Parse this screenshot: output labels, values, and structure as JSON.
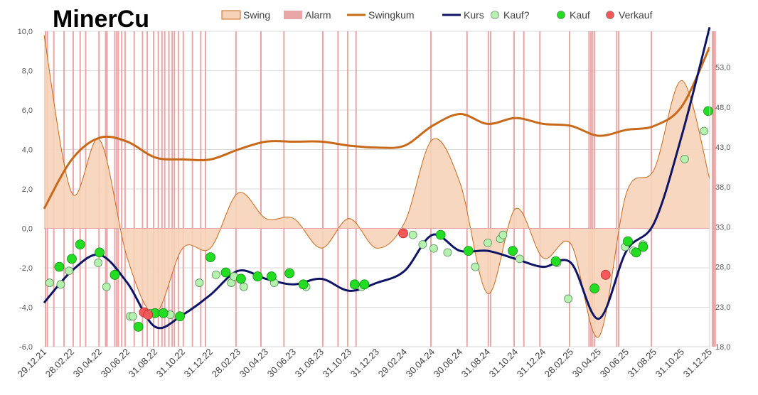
{
  "chart_data": {
    "type": "line",
    "title": "MinerCu",
    "y_left": {
      "range": [
        -6.0,
        10.0
      ],
      "ticks": [
        "10,0",
        "8,0",
        "6,0",
        "4,0",
        "2,0",
        "0,0",
        "-2,0",
        "-4,0",
        "-6,0"
      ]
    },
    "y_right": {
      "range": [
        18.0,
        57.5
      ],
      "ticks": [
        "53,0",
        "48,0",
        "43,0",
        "38,0",
        "33,0",
        "28,0",
        "23,0",
        "18,0"
      ]
    },
    "x_labels": [
      "29.12.21",
      "28.02.22",
      "30.04.22",
      "30.06.22",
      "31.08.22",
      "31.10.22",
      "31.12.22",
      "28.02.23",
      "30.04.23",
      "30.06.23",
      "31.08.23",
      "31.10.23",
      "31.12.23",
      "29.02.24",
      "30.04.24",
      "30.06.24",
      "31.08.24",
      "31.10.24",
      "31.12.24",
      "28.02.25",
      "30.04.25",
      "30.06.25",
      "31.08.25",
      "31.10.25",
      "31.12.25"
    ],
    "legend": [
      {
        "label": "Swing",
        "kind": "area",
        "color": "#f6d3b8",
        "stroke": "#c8691a"
      },
      {
        "label": "Alarm",
        "kind": "bar",
        "color": "#e8a6a6"
      },
      {
        "label": "Swingkum",
        "kind": "line",
        "color": "#c8691a"
      },
      {
        "label": "Kurs",
        "kind": "line",
        "color": "#0f1566"
      },
      {
        "label": "Kauf?",
        "kind": "marker",
        "color": "#b5f2b0"
      },
      {
        "label": "Kauf",
        "kind": "marker",
        "color": "#22dd22"
      },
      {
        "label": "Verkauf",
        "kind": "marker",
        "color": "#f45858"
      }
    ],
    "swing": {
      "x": [
        0,
        1,
        2,
        3,
        4,
        5,
        6,
        7,
        8,
        9,
        10,
        11,
        12,
        13,
        14,
        15,
        16,
        17,
        18,
        19,
        20,
        21,
        22,
        23,
        24
      ],
      "values": [
        9.8,
        1.8,
        4.5,
        -1.5,
        -4.3,
        -1.0,
        -1.0,
        1.8,
        0.5,
        0.5,
        -1.0,
        0.5,
        -1.0,
        0.3,
        4.5,
        2.3,
        -3.3,
        1.0,
        -1.5,
        -0.8,
        -5.5,
        1.8,
        3.0,
        7.5,
        2.5
      ]
    },
    "swingkum": {
      "x": [
        0,
        1,
        2,
        3,
        4,
        5,
        6,
        7,
        8,
        9,
        10,
        11,
        12,
        13,
        14,
        15,
        16,
        17,
        18,
        19,
        20,
        21,
        22,
        23,
        24
      ],
      "values": [
        1.0,
        3.5,
        4.6,
        4.4,
        3.6,
        3.5,
        3.5,
        4.0,
        4.4,
        4.4,
        4.4,
        4.2,
        4.1,
        4.2,
        5.2,
        5.8,
        5.3,
        5.6,
        5.3,
        5.2,
        4.7,
        5.0,
        5.2,
        6.2,
        9.2
      ]
    },
    "kurs": {
      "x": [
        0,
        1,
        2,
        3,
        4,
        5,
        6,
        7,
        8,
        9,
        10,
        11,
        12,
        13,
        14,
        15,
        16,
        17,
        18,
        19,
        20,
        21,
        22,
        23,
        24
      ],
      "values": [
        23.5,
        27.5,
        29.5,
        26.0,
        20.5,
        22.0,
        24.5,
        27.5,
        26.5,
        25.8,
        26.5,
        25.0,
        26.0,
        27.5,
        32.0,
        30.0,
        30.0,
        29.0,
        28.0,
        28.5,
        21.5,
        30.0,
        33.5,
        44.5,
        58.0
      ]
    },
    "alarm_x": [
      0.05,
      0.12,
      0.35,
      0.72,
      1.05,
      1.3,
      1.5,
      1.98,
      2.22,
      2.27,
      2.55,
      2.62,
      2.68,
      2.8,
      2.92,
      3.25,
      3.55,
      3.72,
      3.95,
      4.12,
      4.25,
      4.35,
      4.5,
      4.62,
      4.7,
      4.85,
      5.02,
      5.35,
      5.65,
      5.82,
      6.92,
      7.82,
      8.65,
      10.05,
      10.6,
      10.95,
      11.25,
      13.95,
      15.25,
      16.02,
      16.1,
      16.95,
      17.3,
      17.88,
      18.95,
      19.65,
      19.72,
      19.78,
      19.85,
      20.65,
      20.72,
      21.9,
      24.1,
      24.15,
      24.2
    ],
    "kauf_q": [
      {
        "x": 0.2,
        "y": 26.0
      },
      {
        "x": 0.6,
        "y": 25.8
      },
      {
        "x": 0.9,
        "y": 27.5
      },
      {
        "x": 1.95,
        "y": 28.5
      },
      {
        "x": 2.25,
        "y": 25.5
      },
      {
        "x": 3.1,
        "y": 21.8
      },
      {
        "x": 3.2,
        "y": 21.8
      },
      {
        "x": 3.85,
        "y": 22.2
      },
      {
        "x": 4.55,
        "y": 22.0
      },
      {
        "x": 5.6,
        "y": 26.0
      },
      {
        "x": 6.2,
        "y": 27.0
      },
      {
        "x": 6.75,
        "y": 26.0
      },
      {
        "x": 6.85,
        "y": 26.8
      },
      {
        "x": 7.2,
        "y": 25.5
      },
      {
        "x": 8.3,
        "y": 26.0
      },
      {
        "x": 9.45,
        "y": 25.5
      },
      {
        "x": 11.45,
        "y": 25.5
      },
      {
        "x": 13.3,
        "y": 32.0
      },
      {
        "x": 13.65,
        "y": 30.8
      },
      {
        "x": 14.05,
        "y": 30.3
      },
      {
        "x": 14.55,
        "y": 29.8
      },
      {
        "x": 15.55,
        "y": 28.0
      },
      {
        "x": 16.0,
        "y": 31.0
      },
      {
        "x": 16.45,
        "y": 31.5
      },
      {
        "x": 16.55,
        "y": 32.0
      },
      {
        "x": 17.15,
        "y": 29.0
      },
      {
        "x": 18.5,
        "y": 28.5
      },
      {
        "x": 18.9,
        "y": 24.0
      },
      {
        "x": 20.95,
        "y": 30.5
      },
      {
        "x": 21.25,
        "y": 30.0
      },
      {
        "x": 21.6,
        "y": 30.8
      },
      {
        "x": 23.1,
        "y": 41.5
      },
      {
        "x": 23.8,
        "y": 45.0
      }
    ],
    "kauf": [
      {
        "x": 0.55,
        "y": 28.0
      },
      {
        "x": 1.0,
        "y": 29.0
      },
      {
        "x": 1.3,
        "y": 30.8
      },
      {
        "x": 2.0,
        "y": 29.8
      },
      {
        "x": 2.55,
        "y": 27.0
      },
      {
        "x": 3.4,
        "y": 20.5
      },
      {
        "x": 4.0,
        "y": 22.2
      },
      {
        "x": 4.3,
        "y": 22.2
      },
      {
        "x": 4.9,
        "y": 21.8
      },
      {
        "x": 6.0,
        "y": 29.2
      },
      {
        "x": 6.55,
        "y": 27.3
      },
      {
        "x": 7.1,
        "y": 26.5
      },
      {
        "x": 7.7,
        "y": 26.8
      },
      {
        "x": 8.2,
        "y": 26.8
      },
      {
        "x": 8.85,
        "y": 27.2
      },
      {
        "x": 9.35,
        "y": 25.8
      },
      {
        "x": 11.2,
        "y": 25.8
      },
      {
        "x": 11.55,
        "y": 25.8
      },
      {
        "x": 14.3,
        "y": 32.0
      },
      {
        "x": 15.3,
        "y": 30.0
      },
      {
        "x": 16.9,
        "y": 30.0
      },
      {
        "x": 18.45,
        "y": 28.7
      },
      {
        "x": 19.85,
        "y": 25.3
      },
      {
        "x": 21.05,
        "y": 31.2
      },
      {
        "x": 21.35,
        "y": 29.8
      },
      {
        "x": 21.6,
        "y": 30.5
      },
      {
        "x": 23.95,
        "y": 47.5
      }
    ],
    "verkauf": [
      {
        "x": 3.6,
        "y": 22.3
      },
      {
        "x": 3.75,
        "y": 22.0
      },
      {
        "x": 12.95,
        "y": 32.2
      },
      {
        "x": 20.25,
        "y": 27.0
      }
    ]
  }
}
